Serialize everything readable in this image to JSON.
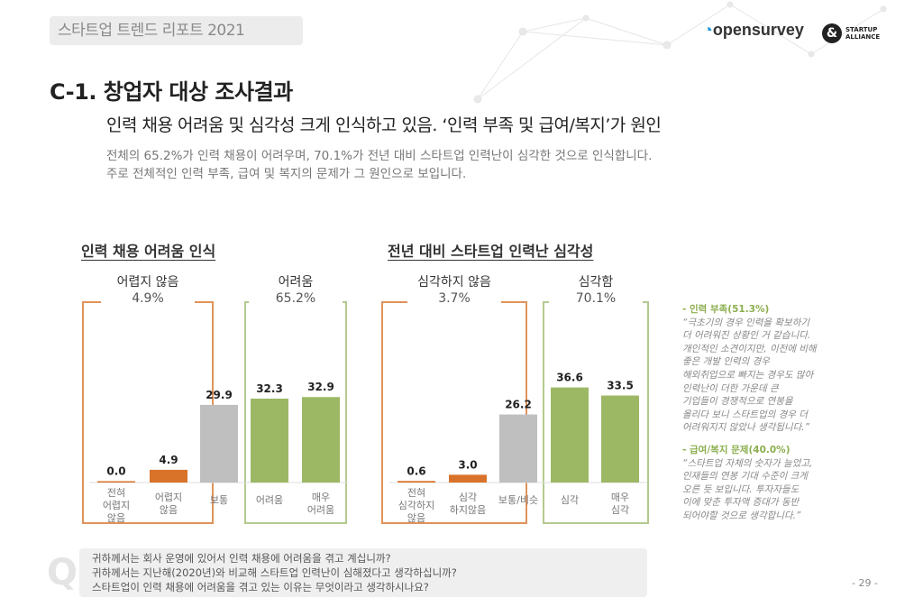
{
  "header": {
    "report_title": "스타트업 트렌드 리포트 2021",
    "logo_opensurvey": "opensurvey",
    "logo_startup_alliance": "STARTUP ALLIANCE"
  },
  "title": "C-1. 창업자 대상 조사결과",
  "subtitle": "인력 채용 어려움 및 심각성 크게 인식하고 있음. ‘인력 부족 및 급여/복지’가 원인",
  "description": [
    "전체의 65.2%가 인력 채용이 어려우며, 70.1%가 전년 대비 스타트업 인력난이 심각한 것으로 인식합니다.",
    "주로 전체적인 인력 부족, 급여 및 복지의 문제가 그 원인으로 보입니다."
  ],
  "colors": {
    "orange": "#d9732a",
    "gray": "#bfbfbf",
    "green": "#9cb865",
    "orange_box": "#e0935a",
    "green_box": "#b4c98f"
  },
  "chart_data": [
    {
      "type": "bar",
      "title": "인력 채용 어려움 인식",
      "categories": [
        "전혀 어렵지 않음",
        "어렵지 않음",
        "보통",
        "어려움",
        "매우 어려움"
      ],
      "values": [
        0.0,
        4.9,
        29.9,
        32.3,
        32.9
      ],
      "value_labels": [
        "0.0",
        "4.9",
        "29.9",
        "32.3",
        "32.9"
      ],
      "bar_colors": [
        "orange",
        "orange",
        "gray",
        "green",
        "green"
      ],
      "groups": [
        {
          "label": "어렵지 않음",
          "value": "4.9%"
        },
        {
          "label": "어려움",
          "value": "65.2%"
        }
      ],
      "ylim": [
        0,
        40
      ]
    },
    {
      "type": "bar",
      "title": "전년 대비 스타트업 인력난 심각성",
      "categories": [
        "전혀 심각하지 않음",
        "심각 하지않음",
        "보통/비슷",
        "심각",
        "매우 심각"
      ],
      "values": [
        0.6,
        3.0,
        26.2,
        36.6,
        33.5
      ],
      "value_labels": [
        "0.6",
        "3.0",
        "26.2",
        "36.6",
        "33.5"
      ],
      "bar_colors": [
        "orange",
        "orange",
        "gray",
        "green",
        "green"
      ],
      "groups": [
        {
          "label": "심각하지 않음",
          "value": "3.7%"
        },
        {
          "label": "심각함",
          "value": "70.1%"
        }
      ],
      "ylim": [
        0,
        40
      ]
    }
  ],
  "quotes": [
    {
      "heading": "- 인력 부족(51.3%)",
      "lines": [
        "“극초기의 경우 인력을 확보하기",
        "더 어려워진 상황인 거 같습니다.",
        "개인적인 소견이지만, 이전에 비해",
        "좋은 개발 인력의 경우",
        "해외취업으로 빠지는 경우도 많아",
        "인력난이 더한 가운데 큰",
        "기업들이 경쟁적으로 연봉을",
        "올리다 보니 스타트업의 경우 더",
        "어려워지지 않았나 생각됩니다.”"
      ]
    },
    {
      "heading": "- 급여/복지 문제(40.0%)",
      "lines": [
        "“스타트업 자체의 숫자가 늘었고,",
        "인재들의 연봉 기대 수준이 크게",
        "오른 듯 보입니다. 투자자들도",
        "이에 맞춘 투자액 증대가 동반",
        "되어야할 것으로 생각합니다.”"
      ]
    }
  ],
  "questions": [
    "귀하께서는 회사 운영에 있어서 인력 채용에 어려움을 겪고 계십니까?",
    "귀하께서는 지난해(2020년)와 비교해 스타트업 인력난이 심해졌다고 생각하십니까?",
    "스타트업이 인력 채용에 어려움을 겪고 있는 이유는 무엇이라고 생각하시나요?"
  ],
  "q_icon": "Q",
  "page_number": "- 29 -"
}
